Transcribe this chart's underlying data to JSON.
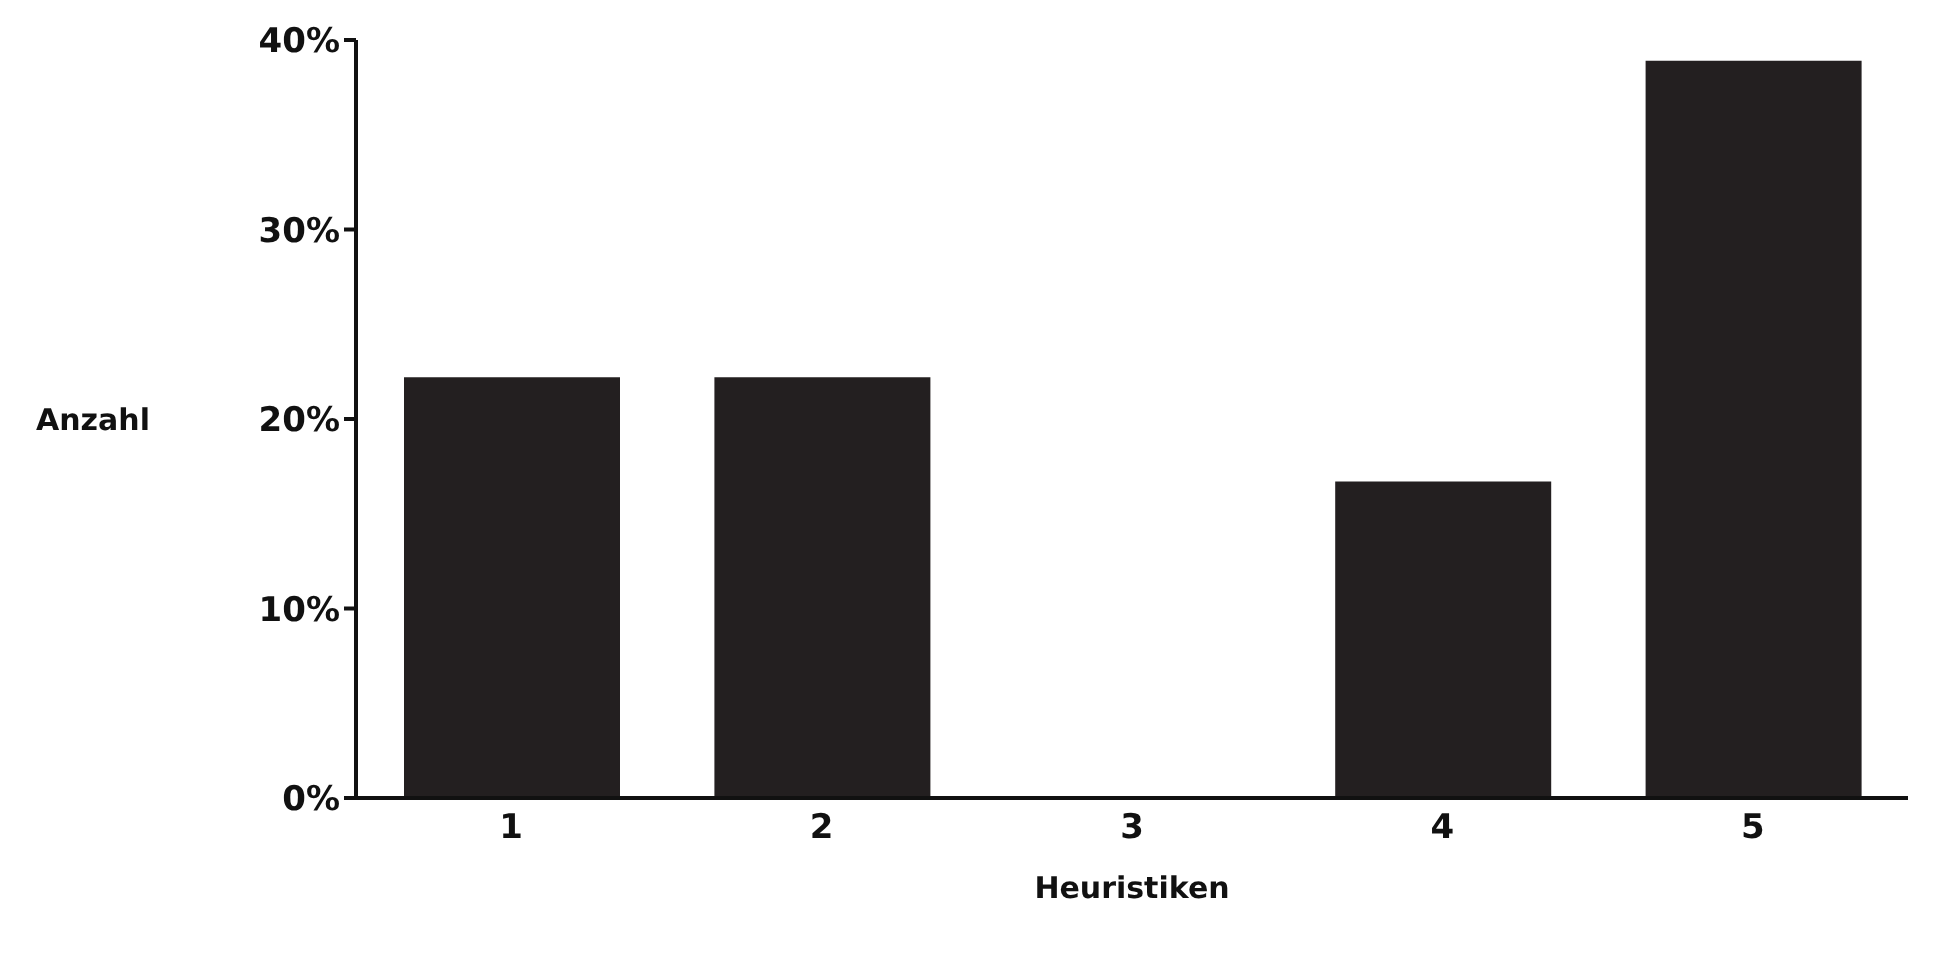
{
  "chart_data": {
    "type": "bar",
    "xlabel": "Heuristiken",
    "ylabel": "Anzahl",
    "categories": [
      "1",
      "2",
      "3",
      "4",
      "5"
    ],
    "values": [
      22.2,
      22.2,
      0,
      16.7,
      38.9
    ],
    "color": "#231f20",
    "ylim": [
      0,
      40
    ],
    "yticks": [
      {
        "value": 0,
        "label": "0%"
      },
      {
        "value": 10,
        "label": "10%"
      },
      {
        "value": 20,
        "label": "20%"
      },
      {
        "value": 30,
        "label": "30%"
      },
      {
        "value": 40,
        "label": "40%"
      }
    ],
    "grid": false
  }
}
